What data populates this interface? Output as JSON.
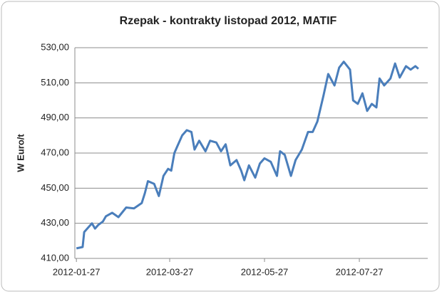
{
  "chart_data": {
    "type": "line",
    "title": "Rzepak - kontrakty listopad 2012, MATIF",
    "y_label": "W Euro/t",
    "x": [
      "2012-01-27",
      "2012-01-31",
      "2012-02-01",
      "2012-02-04",
      "2012-02-06",
      "2012-02-08",
      "2012-02-10",
      "2012-02-13",
      "2012-02-15",
      "2012-02-19",
      "2012-02-23",
      "2012-02-28",
      "2012-03-04",
      "2012-03-09",
      "2012-03-11",
      "2012-03-13",
      "2012-03-17",
      "2012-03-20",
      "2012-03-23",
      "2012-03-26",
      "2012-03-28",
      "2012-03-30",
      "2012-04-01",
      "2012-04-04",
      "2012-04-07",
      "2012-04-10",
      "2012-04-12",
      "2012-04-15",
      "2012-04-19",
      "2012-04-22",
      "2012-04-26",
      "2012-04-29",
      "2012-05-02",
      "2012-05-05",
      "2012-05-09",
      "2012-05-12",
      "2012-05-14",
      "2012-05-17",
      "2012-05-21",
      "2012-05-24",
      "2012-05-27",
      "2012-05-31",
      "2012-06-04",
      "2012-06-06",
      "2012-06-09",
      "2012-06-13",
      "2012-06-16",
      "2012-06-20",
      "2012-06-24",
      "2012-06-27",
      "2012-06-30",
      "2012-07-04",
      "2012-07-07",
      "2012-07-11",
      "2012-07-14",
      "2012-07-17",
      "2012-07-21",
      "2012-07-23",
      "2012-07-26",
      "2012-07-29",
      "2012-08-01",
      "2012-08-04",
      "2012-08-07",
      "2012-08-09",
      "2012-08-12",
      "2012-08-16",
      "2012-08-19",
      "2012-08-22",
      "2012-08-26",
      "2012-08-29",
      "2012-09-01",
      "2012-09-03"
    ],
    "series": [
      {
        "name": "Rzepak",
        "color": "#4a7ebb",
        "values": [
          415.7,
          416.5,
          425,
          428,
          430,
          427,
          429,
          431,
          434,
          436,
          433.5,
          439,
          438.5,
          441.5,
          447,
          454,
          452.5,
          445.5,
          457,
          461,
          460,
          470,
          474,
          480,
          483,
          482,
          472,
          477,
          471,
          477,
          476,
          471,
          475,
          463,
          466,
          460,
          454.5,
          463,
          456,
          464,
          467,
          465,
          457,
          471,
          469,
          457,
          466,
          472,
          482,
          482,
          488,
          503,
          515,
          508.5,
          518.6,
          522,
          517.5,
          500,
          498,
          504,
          494,
          498,
          496,
          512.5,
          508.5,
          512.5,
          521,
          513,
          519.5,
          517.5,
          519.5,
          518
        ]
      }
    ],
    "xlim": [
      "2012-01-26",
      "2012-09-09"
    ],
    "xticks": [
      "2012-01-27",
      "2012-03-27",
      "2012-05-27",
      "2012-07-27"
    ],
    "ylim": [
      410,
      530
    ],
    "yticks": [
      {
        "value": 410,
        "label": "410,00"
      },
      {
        "value": 430,
        "label": "430,00"
      },
      {
        "value": 450,
        "label": "450,00"
      },
      {
        "value": 470,
        "label": "470,00"
      },
      {
        "value": 490,
        "label": "490,00"
      },
      {
        "value": 510,
        "label": "510,00"
      },
      {
        "value": 530,
        "label": "530,00"
      }
    ],
    "grid": true
  }
}
